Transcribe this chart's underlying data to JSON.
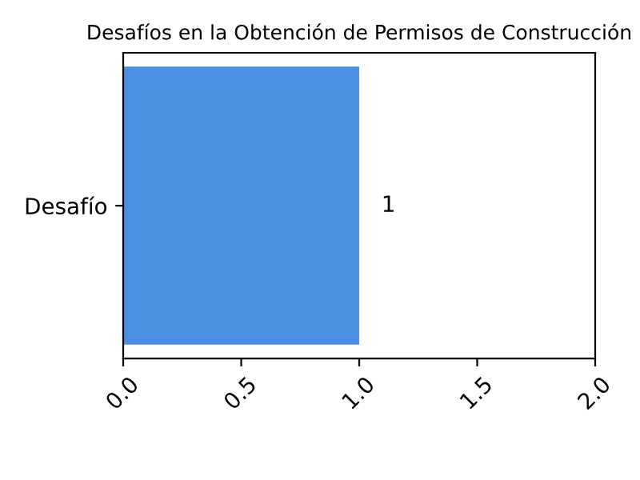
{
  "chart_data": {
    "type": "bar",
    "orientation": "horizontal",
    "title": "Desafíos en la Obtención de Permisos de Construcción",
    "categories": [
      "Desafío"
    ],
    "values": [
      1
    ],
    "color": "#4a90e2",
    "xlim": [
      0,
      2
    ],
    "xticks": [
      {
        "value": 0,
        "label": "0.0"
      },
      {
        "value": 0.5,
        "label": "0.5"
      },
      {
        "value": 1,
        "label": "1.0"
      },
      {
        "value": 1.5,
        "label": "1.5"
      },
      {
        "value": 2,
        "label": "2.0"
      }
    ],
    "data_labels": true,
    "grid": false,
    "legend": false
  }
}
